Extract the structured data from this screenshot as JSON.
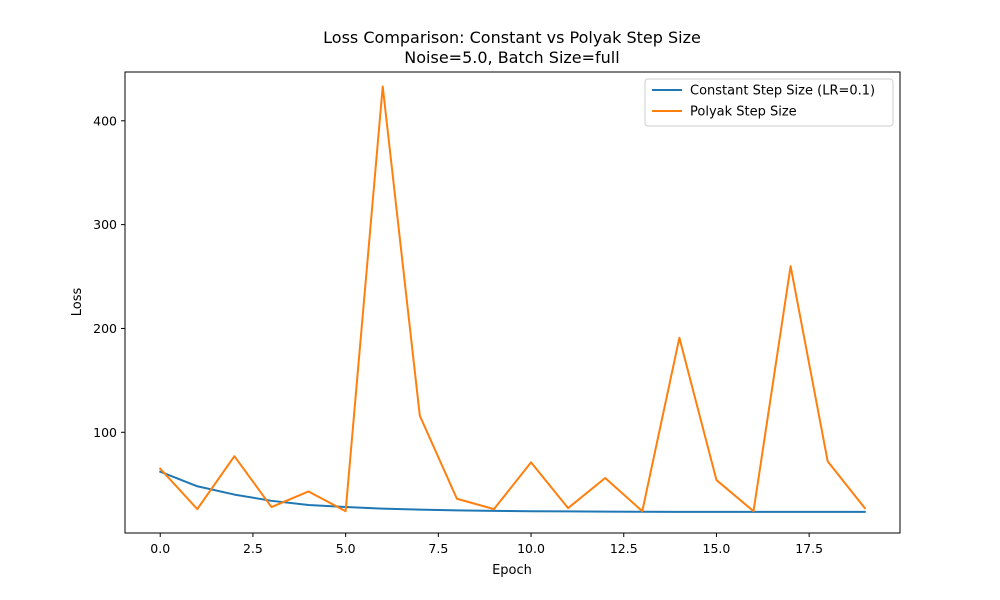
{
  "chart_data": {
    "type": "line",
    "title_line1": "Loss Comparison: Constant vs Polyak Step Size",
    "title_line2": "Noise=5.0, Batch Size=full",
    "xlabel": "Epoch",
    "ylabel": "Loss",
    "xlim": [
      -0.95,
      19.95
    ],
    "ylim": [
      3,
      447
    ],
    "xticks": [
      0.0,
      2.5,
      5.0,
      7.5,
      10.0,
      12.5,
      15.0,
      17.5
    ],
    "xtick_labels": [
      "0.0",
      "2.5",
      "5.0",
      "7.5",
      "10.0",
      "12.5",
      "15.0",
      "17.5"
    ],
    "yticks": [
      100,
      200,
      300,
      400
    ],
    "ytick_labels": [
      "100",
      "200",
      "300",
      "400"
    ],
    "grid": false,
    "legend_position": "top-right",
    "x": [
      0,
      1,
      2,
      3,
      4,
      5,
      6,
      7,
      8,
      9,
      10,
      11,
      12,
      13,
      14,
      15,
      16,
      17,
      18,
      19
    ],
    "series": [
      {
        "name": "Constant Step Size (LR=0.1)",
        "color": "#1f77b4",
        "values": [
          62,
          48,
          40,
          34,
          30,
          28,
          26.5,
          25.5,
          24.8,
          24.3,
          24,
          23.8,
          23.6,
          23.5,
          23.4,
          23.4,
          23.3,
          23.3,
          23.3,
          23.3
        ]
      },
      {
        "name": "Polyak Step Size",
        "color": "#ff7f0e",
        "values": [
          65,
          26,
          77,
          28,
          43,
          24,
          433,
          116,
          36,
          26,
          71,
          27,
          56,
          24,
          191,
          54,
          24,
          260,
          72,
          27
        ]
      }
    ]
  }
}
